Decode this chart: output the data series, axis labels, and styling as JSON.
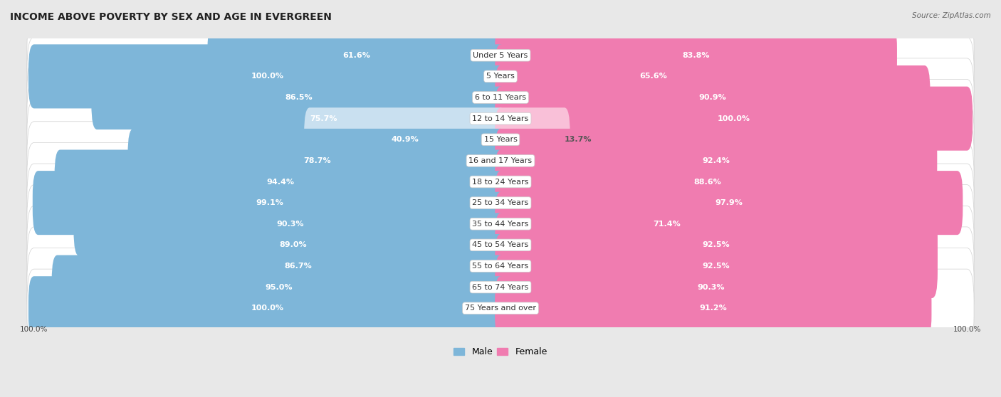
{
  "title": "INCOME ABOVE POVERTY BY SEX AND AGE IN EVERGREEN",
  "source": "Source: ZipAtlas.com",
  "categories": [
    "Under 5 Years",
    "5 Years",
    "6 to 11 Years",
    "12 to 14 Years",
    "15 Years",
    "16 and 17 Years",
    "18 to 24 Years",
    "25 to 34 Years",
    "35 to 44 Years",
    "45 to 54 Years",
    "55 to 64 Years",
    "65 to 74 Years",
    "75 Years and over"
  ],
  "male_values": [
    61.6,
    100.0,
    86.5,
    75.7,
    40.9,
    78.7,
    94.4,
    99.1,
    90.3,
    89.0,
    86.7,
    95.0,
    100.0
  ],
  "female_values": [
    83.8,
    65.6,
    90.9,
    100.0,
    13.7,
    92.4,
    88.6,
    97.9,
    71.4,
    92.5,
    92.5,
    90.3,
    91.2
  ],
  "male_color": "#7eb6d9",
  "female_color": "#f07cb0",
  "male_color_light": "#c9e0f0",
  "female_color_light": "#f9c0d8",
  "row_bg_color": "#ffffff",
  "background_color": "#e8e8e8",
  "title_fontsize": 10,
  "label_fontsize": 8,
  "value_fontsize": 8,
  "legend_fontsize": 9,
  "light_threshold": 50
}
